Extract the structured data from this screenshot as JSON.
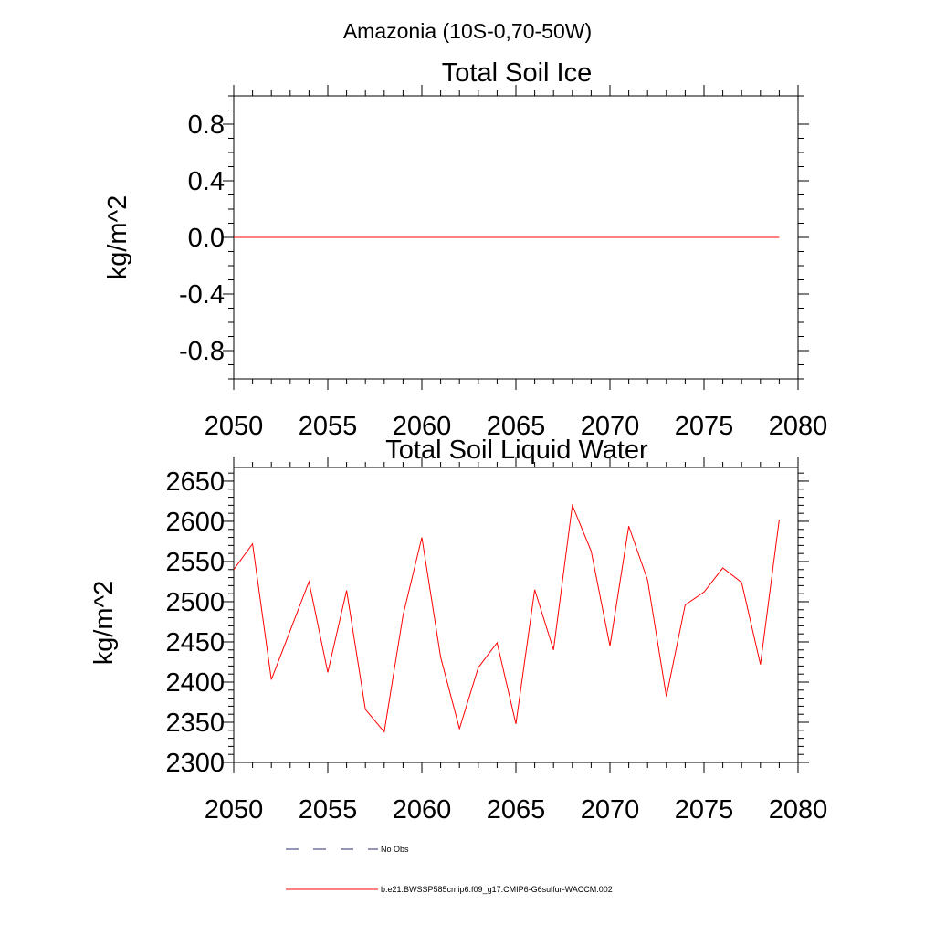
{
  "main_title": "Amazonia (10S-0,70-50W)",
  "legend": {
    "items": [
      {
        "label": "No Obs",
        "style": "dashed",
        "color": "#2b2b6e"
      },
      {
        "label": "b.e21.BWSSP585cmip6.f09_g17.CMIP6-G6sulfur-WACCM.002",
        "style": "solid",
        "color": "#ff0000"
      }
    ]
  },
  "chart_data": [
    {
      "type": "line",
      "title": "Total Soil Ice",
      "xlabel": "",
      "ylabel": "kg/m^2",
      "xlim": [
        2050,
        2080
      ],
      "ylim": [
        -1.0,
        1.0
      ],
      "x_ticks": [
        2050,
        2055,
        2060,
        2065,
        2070,
        2075,
        2080
      ],
      "y_ticks": [
        -0.8,
        -0.4,
        0.0,
        0.4,
        0.8
      ],
      "x_tick_labels": [
        "2050",
        "2055",
        "2060",
        "2065",
        "2070",
        "2075",
        "2080"
      ],
      "y_tick_labels": [
        "-0.8",
        "-0.4",
        "0.0",
        "0.4",
        "0.8"
      ],
      "grid": false,
      "series": [
        {
          "color": "#ff0000",
          "x": [
            2050,
            2079
          ],
          "y": [
            0.0,
            0.0
          ]
        }
      ]
    },
    {
      "type": "line",
      "title": "Total Soil Liquid Water",
      "xlabel": "",
      "ylabel": "kg/m^2",
      "xlim": [
        2050,
        2080
      ],
      "ylim": [
        2300,
        2667
      ],
      "x_ticks": [
        2050,
        2055,
        2060,
        2065,
        2070,
        2075,
        2080
      ],
      "y_ticks": [
        2300,
        2350,
        2400,
        2450,
        2500,
        2550,
        2600,
        2650
      ],
      "x_tick_labels": [
        "2050",
        "2055",
        "2060",
        "2065",
        "2070",
        "2075",
        "2080"
      ],
      "y_tick_labels": [
        "2300",
        "2350",
        "2400",
        "2450",
        "2500",
        "2550",
        "2600",
        "2650"
      ],
      "grid": false,
      "series": [
        {
          "color": "#ff0000",
          "x": [
            2050,
            2051,
            2052,
            2053,
            2054,
            2055,
            2056,
            2057,
            2058,
            2059,
            2060,
            2061,
            2062,
            2063,
            2064,
            2065,
            2066,
            2067,
            2068,
            2069,
            2070,
            2071,
            2072,
            2073,
            2074,
            2075,
            2076,
            2077,
            2078,
            2079
          ],
          "y": [
            2540,
            2572,
            2403,
            2464,
            2525,
            2412,
            2514,
            2366,
            2338,
            2483,
            2580,
            2431,
            2342,
            2418,
            2449,
            2348,
            2515,
            2440,
            2620,
            2563,
            2445,
            2594,
            2527,
            2382,
            2496,
            2512,
            2542,
            2524,
            2422,
            2602
          ]
        }
      ]
    }
  ]
}
